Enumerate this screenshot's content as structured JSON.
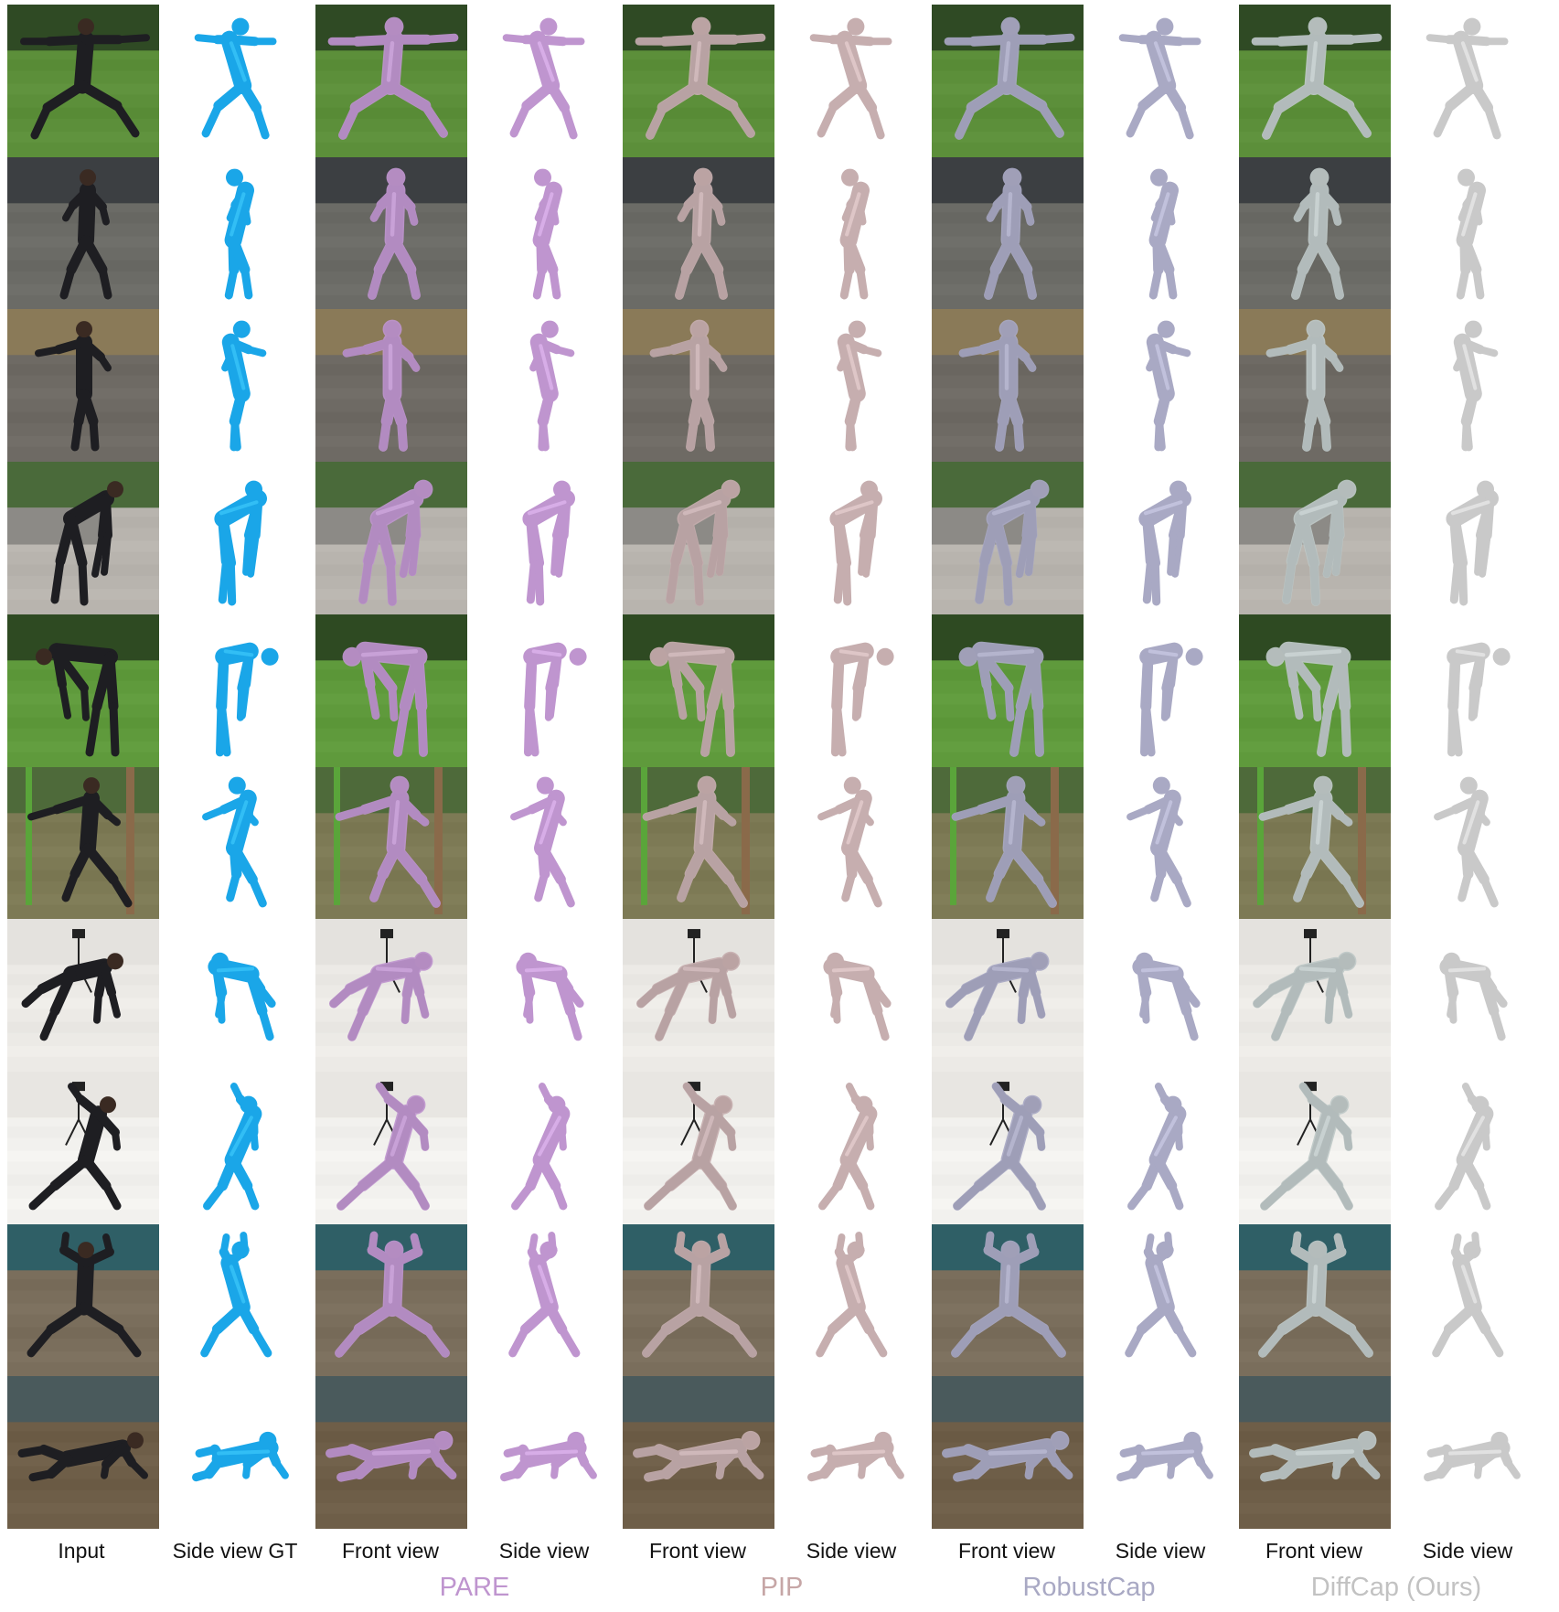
{
  "figure": {
    "columns": [
      {
        "label": "Input",
        "kind": "photo"
      },
      {
        "label": "Side view GT",
        "kind": "side",
        "mesh_color": "#1aa6e8"
      },
      {
        "label": "Front view",
        "kind": "front",
        "mesh_color": "#bf95cf"
      },
      {
        "label": "Side view",
        "kind": "side",
        "mesh_color": "#bf95cf"
      },
      {
        "label": "Front view",
        "kind": "front",
        "mesh_color": "#c6aeaf"
      },
      {
        "label": "Side view",
        "kind": "side",
        "mesh_color": "#c6aeaf"
      },
      {
        "label": "Front view",
        "kind": "front",
        "mesh_color": "#a9a9c4"
      },
      {
        "label": "Side view",
        "kind": "side",
        "mesh_color": "#a9a9c4"
      },
      {
        "label": "Front view",
        "kind": "front",
        "mesh_color": "#bfc9c8"
      },
      {
        "label": "Side view",
        "kind": "side",
        "mesh_color": "#c9c9c9"
      }
    ],
    "methods": [
      {
        "name": "PARE",
        "color": "#bf95cf"
      },
      {
        "name": "PIP",
        "color": "#c6a6a6"
      },
      {
        "name": "RobustCap",
        "color": "#a9a9c4"
      },
      {
        "name": "DiffCap (Ours)",
        "color": "#c2c2c2"
      }
    ],
    "rows": [
      {
        "scene": "lawn-hedge",
        "pose": "lunge-arms-out",
        "bg": "#5c8f3a",
        "bg_top": "#2f4a24"
      },
      {
        "scene": "street-crowd",
        "pose": "walking",
        "bg": "#6b6b66",
        "bg_top": "#3c3f42"
      },
      {
        "scene": "courtyard-cobblestone",
        "pose": "standing-reach",
        "bg": "#6e6a64",
        "bg_top": "#8a7a58"
      },
      {
        "scene": "golf-putting",
        "pose": "bent-over",
        "bg": "#b8b4ae",
        "bg_top": "#4a6a3a"
      },
      {
        "scene": "garden-grass",
        "pose": "deep-bend",
        "bg": "#5f9a3c",
        "bg_top": "#2e4a22"
      },
      {
        "scene": "bamboo-park",
        "pose": "balance-step",
        "bg": "#7d7a55",
        "bg_top": "#4e6a3a"
      },
      {
        "scene": "white-studio-tripod",
        "pose": "crawl-low",
        "bg": "#eceae6",
        "bg_top": "#e4e2de"
      },
      {
        "scene": "white-studio-tripod",
        "pose": "side-stretch",
        "bg": "#f2f1ee",
        "bg_top": "#e8e6e2"
      },
      {
        "scene": "mocap-teal-curtain",
        "pose": "wide-squat-arms-up",
        "bg": "#7a6e5c",
        "bg_top": "#2f5f66"
      },
      {
        "scene": "mocap-floor",
        "pose": "floor-crawl",
        "bg": "#6e5e48",
        "bg_top": "#4a5a5c"
      }
    ]
  }
}
